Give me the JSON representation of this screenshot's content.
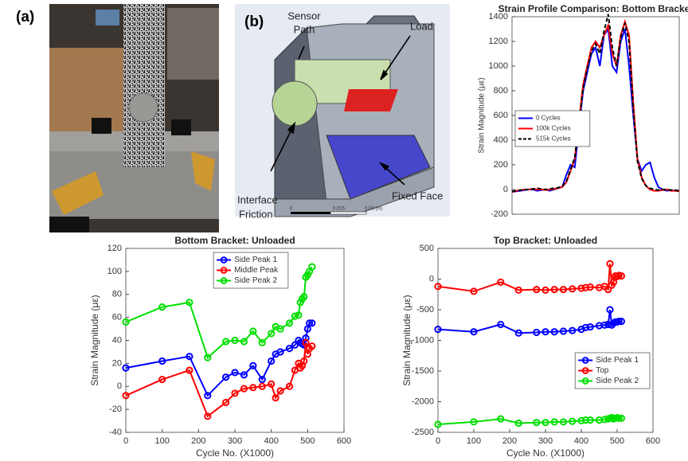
{
  "panels": {
    "a": {
      "label": "(a)"
    },
    "b": {
      "label": "(b)",
      "annotations": [
        [
          "Sensor",
          "Path"
        ],
        "Load",
        [
          "Interface",
          "Friction"
        ],
        "Fixed Face"
      ],
      "scale_labels": [
        "0",
        "0.015",
        "0.03 (m)"
      ]
    }
  },
  "chart_data": [
    {
      "type": "line",
      "title": "Strain Profile Comparison: Bottom Bracket",
      "ylabel": "Strain Magnitude (με)",
      "categories": [
        null,
        null,
        null,
        null,
        null,
        null,
        null,
        null,
        null,
        null,
        null,
        null,
        null,
        null,
        null,
        null,
        null,
        null,
        null,
        null,
        null,
        null,
        null,
        null,
        null,
        null,
        null,
        null,
        null,
        null,
        null,
        null,
        null,
        null,
        null,
        null,
        null,
        null,
        null,
        null,
        null
      ],
      "ylim": [
        -200,
        1400
      ],
      "yticks": [
        -200,
        0,
        200,
        400,
        600,
        800,
        1000,
        1200,
        1400
      ],
      "legend": "center left",
      "grid": false,
      "series": [
        {
          "name": "0 Cycles",
          "color": "#0000ff",
          "linestyle": "solid",
          "values": [
            -20,
            -15,
            -10,
            -5,
            0,
            0,
            -10,
            -5,
            0,
            -10,
            0,
            10,
            20,
            120,
            200,
            180,
            500,
            800,
            950,
            1100,
            1150,
            1000,
            1250,
            1300,
            1000,
            950,
            1200,
            1300,
            1000,
            600,
            250,
            150,
            200,
            220,
            100,
            20,
            0,
            -10,
            -5,
            -10,
            -10
          ]
        },
        {
          "name": "100k Cycles",
          "color": "#ff0000",
          "linestyle": "solid",
          "values": [
            -20,
            -10,
            -5,
            0,
            0,
            5,
            0,
            0,
            -5,
            0,
            5,
            10,
            20,
            60,
            150,
            250,
            550,
            850,
            1000,
            1150,
            1200,
            1150,
            1250,
            1330,
            1100,
            1000,
            1250,
            1360,
            1250,
            700,
            250,
            100,
            30,
            0,
            -10,
            -10,
            -5,
            0,
            -10,
            -10,
            -15
          ]
        },
        {
          "name": "515k Cycles",
          "color": "#000000",
          "linestyle": "dashed",
          "values": [
            -15,
            -10,
            -5,
            0,
            0,
            5,
            10,
            5,
            0,
            5,
            10,
            15,
            25,
            70,
            160,
            260,
            520,
            820,
            980,
            1120,
            1180,
            1100,
            1280,
            1420,
            1150,
            1000,
            1230,
            1350,
            1200,
            650,
            230,
            90,
            30,
            10,
            0,
            -5,
            0,
            0,
            -5,
            -5,
            -10
          ]
        }
      ]
    },
    {
      "type": "line",
      "title": "Bottom Bracket: Unloaded",
      "xlabel": "Cycle No. (X1000)",
      "ylabel": "Strain Magnitude (με)",
      "x": [
        0,
        100,
        175,
        225,
        275,
        300,
        325,
        350,
        375,
        400,
        412,
        425,
        450,
        465,
        475,
        480,
        485,
        490,
        495,
        500,
        505,
        512
      ],
      "xlim": [
        0,
        600
      ],
      "xticks": [
        0,
        100,
        200,
        300,
        400,
        500,
        600
      ],
      "ylim": [
        -40,
        120
      ],
      "yticks": [
        -40,
        -20,
        0,
        20,
        40,
        60,
        80,
        100,
        120
      ],
      "legend": "upper center",
      "marker": "o",
      "grid": false,
      "series": [
        {
          "name": "Side Peak 1",
          "color": "#0000ff",
          "linestyle": "solid",
          "values": [
            16,
            22,
            26,
            -8,
            8,
            12,
            10,
            18,
            6,
            22,
            28,
            30,
            33,
            36,
            40,
            38,
            37,
            36,
            42,
            50,
            55,
            55
          ]
        },
        {
          "name": "Middle Peak",
          "color": "#ff0000",
          "linestyle": "solid",
          "values": [
            -8,
            6,
            14,
            -26,
            -14,
            -6,
            -2,
            -1,
            0,
            2,
            -10,
            -4,
            0,
            14,
            20,
            16,
            18,
            22,
            38,
            28,
            33,
            35
          ]
        },
        {
          "name": "Side Peak 2",
          "color": "#00e000",
          "linestyle": "solid",
          "values": [
            56,
            69,
            73,
            25,
            39,
            40,
            39,
            48,
            38,
            46,
            52,
            50,
            55,
            61,
            62,
            73,
            76,
            78,
            95,
            97,
            100,
            104
          ]
        }
      ]
    },
    {
      "type": "line",
      "title": "Top Bracket: Unloaded",
      "xlabel": "Cycle No. (X1000)",
      "ylabel": "Strain Magnitude (με)",
      "x": [
        0,
        100,
        175,
        225,
        275,
        300,
        325,
        350,
        375,
        400,
        412,
        425,
        450,
        465,
        475,
        480,
        485,
        490,
        495,
        500,
        505,
        512
      ],
      "xlim": [
        0,
        600
      ],
      "xticks": [
        0,
        100,
        200,
        300,
        400,
        500,
        600
      ],
      "ylim": [
        -2500,
        500
      ],
      "yticks": [
        -2500,
        -2000,
        -1500,
        -1000,
        -500,
        0,
        500
      ],
      "legend": "lower right",
      "marker": "o",
      "grid": false,
      "series": [
        {
          "name": "Side Peak 1",
          "color": "#0000ff",
          "linestyle": "solid",
          "values": [
            -820,
            -860,
            -740,
            -880,
            -870,
            -860,
            -860,
            -850,
            -840,
            -820,
            -790,
            -780,
            -760,
            -750,
            -740,
            -500,
            -750,
            -720,
            -700,
            -700,
            -690,
            -690
          ]
        },
        {
          "name": "Top",
          "color": "#ff0000",
          "linestyle": "solid",
          "values": [
            -120,
            -200,
            -50,
            -180,
            -170,
            -180,
            -170,
            -170,
            -160,
            -150,
            -140,
            -130,
            -140,
            -120,
            -170,
            250,
            -100,
            -50,
            50,
            40,
            60,
            50
          ]
        },
        {
          "name": "Side Peak 2",
          "color": "#00e000",
          "linestyle": "solid",
          "values": [
            -2370,
            -2330,
            -2280,
            -2350,
            -2340,
            -2340,
            -2330,
            -2330,
            -2320,
            -2310,
            -2300,
            -2300,
            -2300,
            -2290,
            -2280,
            -2270,
            -2260,
            -2280,
            -2270,
            -2260,
            -2270,
            -2270
          ]
        }
      ]
    }
  ]
}
